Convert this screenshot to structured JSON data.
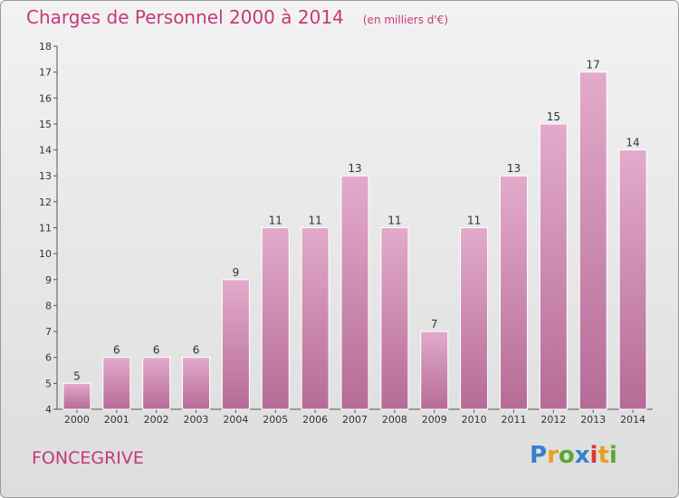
{
  "header": {
    "title": "Charges de Personnel 2000 à 2014",
    "subtitle": "(en milliers d'€)"
  },
  "footer": {
    "commune": "FONCEGRIVE",
    "logo_text": "Proxiti"
  },
  "colors": {
    "title": "#c5397a",
    "bar_top": "#e3aacb",
    "bar_bottom": "#b56c97",
    "logo": [
      "#3a7fcf",
      "#e8a020",
      "#5aa832",
      "#3a7fcf",
      "#d93a2a",
      "#e8a020",
      "#5aa832"
    ]
  },
  "chart_data": {
    "type": "bar",
    "categories": [
      "2000",
      "2001",
      "2002",
      "2003",
      "2004",
      "2005",
      "2006",
      "2007",
      "2008",
      "2009",
      "2010",
      "2011",
      "2012",
      "2013",
      "2014"
    ],
    "values": [
      5,
      6,
      6,
      6,
      9,
      11,
      11,
      13,
      11,
      7,
      11,
      13,
      15,
      17,
      14
    ],
    "ylim": [
      4,
      18
    ],
    "yticks": [
      4,
      5,
      6,
      7,
      8,
      9,
      10,
      11,
      12,
      13,
      14,
      15,
      16,
      17,
      18
    ],
    "grid": false
  }
}
